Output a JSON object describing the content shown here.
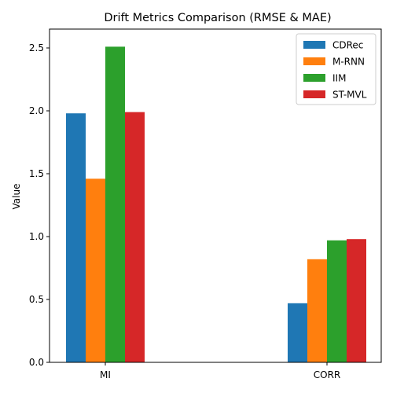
{
  "chart_data": {
    "type": "bar",
    "title": "Drift Metrics Comparison (RMSE & MAE)",
    "xlabel": "",
    "ylabel": "Value",
    "categories": [
      "MI",
      "CORR"
    ],
    "ylim": [
      0,
      2.65
    ],
    "yticks": [
      "0.0",
      "0.5",
      "1.0",
      "1.5",
      "2.0",
      "2.5"
    ],
    "grid": false,
    "legend_position": "top-right",
    "series": [
      {
        "name": "CDRec",
        "color": "#1f77b4",
        "values": [
          1.98,
          0.47
        ]
      },
      {
        "name": "M-RNN",
        "color": "#ff7f0e",
        "values": [
          1.46,
          0.82
        ]
      },
      {
        "name": "IIM",
        "color": "#2ca02c",
        "values": [
          2.51,
          0.97
        ]
      },
      {
        "name": "ST-MVL",
        "color": "#d62728",
        "values": [
          1.99,
          0.98
        ]
      }
    ]
  }
}
